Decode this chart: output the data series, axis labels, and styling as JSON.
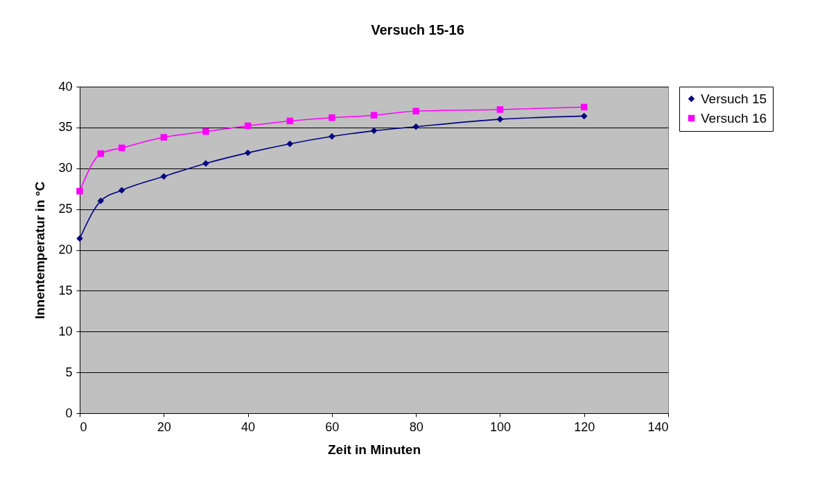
{
  "chart_data": {
    "type": "line",
    "title": "Versuch 15-16",
    "xlabel": "Zeit in Minuten",
    "ylabel": "Innentemperatur in °C",
    "x": [
      0,
      5,
      10,
      20,
      30,
      40,
      50,
      60,
      70,
      80,
      100,
      120
    ],
    "series": [
      {
        "name": "Versuch 15",
        "color": "#000080",
        "marker": "diamond",
        "values": [
          21.4,
          26.0,
          27.3,
          29.0,
          30.6,
          31.9,
          33.0,
          33.9,
          34.6,
          35.1,
          36.0,
          36.4
        ]
      },
      {
        "name": "Versuch 16",
        "color": "#ff00ff",
        "marker": "square",
        "values": [
          27.2,
          31.8,
          32.5,
          33.8,
          34.5,
          35.2,
          35.8,
          36.2,
          36.5,
          37.0,
          37.2,
          37.5
        ]
      }
    ],
    "xlim": [
      0,
      140
    ],
    "xticks": [
      0,
      20,
      40,
      60,
      80,
      100,
      120,
      140
    ],
    "ylim": [
      0,
      40
    ],
    "yticks": [
      0,
      5,
      10,
      15,
      20,
      25,
      30,
      35,
      40
    ],
    "grid": "y",
    "legend": "right",
    "line_style": "solid"
  }
}
